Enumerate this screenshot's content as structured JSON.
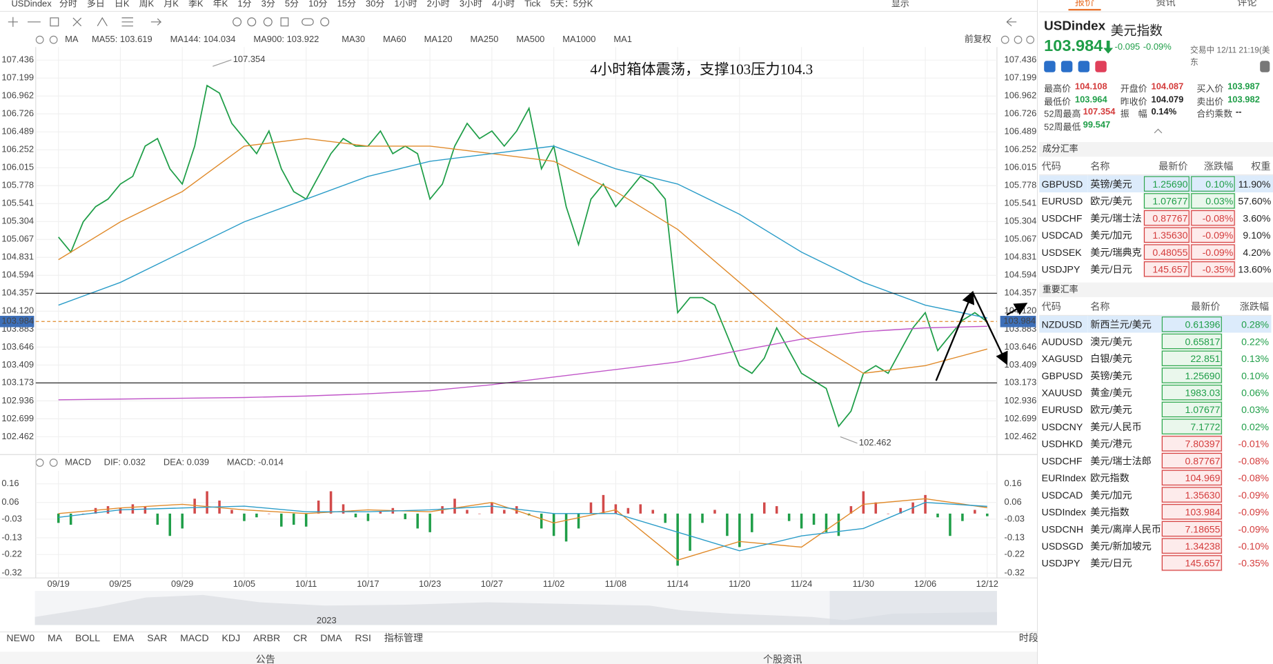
{
  "toolbar": {
    "symbol": "USDindex",
    "periods": [
      "分时",
      "多日",
      "日K",
      "周K",
      "月K",
      "季K",
      "年K",
      "1分",
      "3分",
      "5分",
      "10分",
      "15分",
      "30分",
      "1小时",
      "2小时",
      "3小时",
      "4小时",
      "Tick",
      "5天：5分K"
    ],
    "active": 16,
    "display": "显示"
  },
  "chart_data": [
    {
      "type": "line",
      "indicator": "MA",
      "adjust": "前复权",
      "annotation": "4小时箱体震荡，支撑103压力104.3",
      "ylim": [
        102.248,
        107.608
      ],
      "yticks": [
        107.436,
        107.199,
        106.962,
        106.726,
        106.489,
        106.252,
        106.015,
        105.778,
        105.541,
        105.304,
        105.067,
        104.831,
        104.594,
        104.357,
        {
          "value": 104.12,
          "label": "104.120"
        },
        103.883,
        103.646,
        103.409,
        103.173,
        102.936,
        102.699,
        102.462
      ],
      "grid": true,
      "high_label": 107.354,
      "low_label": 102.462,
      "last_price": 103.984,
      "hlines": [
        104.357,
        103.173
      ],
      "inactive_ma": [
        "MA30",
        "MA60",
        "MA120",
        "MA250",
        "MA500",
        "MA1000",
        "MA1"
      ],
      "series": [
        {
          "color": "#1f9e48",
          "values": [
            105.1,
            104.9,
            105.3,
            105.5,
            105.6,
            105.8,
            105.9,
            106.3,
            106.4,
            106.0,
            105.8,
            106.3,
            107.1,
            107.0,
            106.6,
            106.4,
            106.2,
            106.5,
            106.0,
            105.7,
            105.6,
            105.9,
            106.2,
            106.4,
            106.3,
            106.3,
            106.5,
            106.2,
            106.3,
            106.2,
            105.6,
            105.8,
            106.3,
            106.6,
            106.4,
            106.5,
            106.3,
            106.5,
            106.8,
            106.0,
            106.3,
            105.5,
            105.0,
            105.6,
            105.8,
            105.5,
            105.7,
            105.9,
            105.8,
            105.6,
            104.1,
            104.3,
            104.3,
            104.2,
            103.8,
            103.4,
            103.3,
            103.5,
            103.9,
            103.6,
            103.3,
            103.2,
            103.1,
            102.6,
            102.8,
            103.3,
            103.4,
            103.3,
            103.6,
            103.9,
            104.1,
            103.6,
            103.8,
            104.0,
            104.1,
            103.98
          ]
        },
        {
          "name": "MA55: 103.619",
          "color": "#e08a2a",
          "x": [
            0,
            5,
            10,
            15,
            20,
            25,
            30,
            35,
            40,
            45,
            50,
            55,
            60,
            65,
            70,
            75
          ],
          "values": [
            104.8,
            105.3,
            105.7,
            106.3,
            106.4,
            106.3,
            106.3,
            106.2,
            106.1,
            105.7,
            105.2,
            104.5,
            103.8,
            103.3,
            103.4,
            103.62
          ]
        },
        {
          "name": "MA144: 104.034",
          "color": "#2a9cc8",
          "x": [
            0,
            5,
            10,
            15,
            20,
            25,
            30,
            35,
            40,
            45,
            50,
            55,
            60,
            65,
            70,
            75
          ],
          "values": [
            104.2,
            104.5,
            104.9,
            105.3,
            105.6,
            105.9,
            106.1,
            106.2,
            106.3,
            106.0,
            105.8,
            105.4,
            104.9,
            104.5,
            104.2,
            104.03
          ]
        },
        {
          "name": "MA900: 103.922",
          "color": "#c055c8",
          "x": [
            0,
            5,
            10,
            15,
            20,
            25,
            30,
            35,
            40,
            45,
            50,
            55,
            60,
            65,
            70,
            75
          ],
          "values": [
            102.95,
            102.96,
            102.97,
            102.98,
            103.0,
            103.03,
            103.07,
            103.15,
            103.25,
            103.35,
            103.45,
            103.6,
            103.75,
            103.85,
            103.9,
            103.92
          ]
        }
      ]
    },
    {
      "type": "bar",
      "indicator": "MACD",
      "ylim": [
        -0.346,
        0.23
      ],
      "yticks": [
        0.16,
        0.06,
        -0.03,
        -0.13,
        -0.22,
        -0.32
      ],
      "grid": true,
      "categories": [
        "09/19",
        null,
        null,
        null,
        null,
        "09/25",
        null,
        null,
        null,
        null,
        "09/29",
        null,
        null,
        null,
        null,
        "10/05",
        null,
        null,
        null,
        null,
        "10/11",
        null,
        null,
        null,
        null,
        "10/17",
        null,
        null,
        null,
        null,
        "10/23",
        null,
        null,
        null,
        null,
        "10/27",
        null,
        null,
        null,
        null,
        "11/02",
        null,
        null,
        null,
        null,
        "11/08",
        null,
        null,
        null,
        null,
        "11/14",
        null,
        null,
        null,
        null,
        "11/20",
        null,
        null,
        null,
        null,
        "11/24",
        null,
        null,
        null,
        null,
        "11/30",
        null,
        null,
        null,
        null,
        "12/06",
        null,
        null,
        null,
        null,
        "12/12"
      ],
      "bars": {
        "name": "MACD: -0.014",
        "color": "#b04ec0",
        "up_color": "#d24a4a",
        "down_color": "#1f9e48",
        "values": [
          -0.05,
          -0.06,
          0.0,
          0.03,
          0.04,
          0.03,
          0.05,
          0.04,
          -0.06,
          -0.12,
          -0.08,
          0.08,
          0.12,
          0.07,
          0.02,
          -0.04,
          -0.02,
          0.0,
          -0.07,
          -0.06,
          -0.07,
          0.07,
          0.12,
          0.05,
          -0.02,
          -0.04,
          0.01,
          0.03,
          -0.03,
          -0.08,
          -0.1,
          0.04,
          0.08,
          0.02,
          0.0,
          0.06,
          0.02,
          0.04,
          -0.01,
          -0.08,
          -0.12,
          -0.15,
          -0.08,
          0.06,
          0.1,
          0.05,
          0.03,
          0.05,
          0.02,
          -0.05,
          -0.28,
          -0.2,
          -0.05,
          0.02,
          -0.12,
          -0.18,
          -0.1,
          0.06,
          0.04,
          -0.04,
          -0.08,
          -0.06,
          -0.1,
          -0.12,
          0.04,
          0.12,
          0.06,
          0.0,
          0.03,
          0.06,
          0.1,
          -0.02,
          -0.12,
          -0.04,
          0.02,
          -0.014
        ]
      },
      "series": [
        {
          "name": "DIF: 0.032",
          "color": "#e08a2a",
          "x": [
            0,
            5,
            10,
            15,
            20,
            25,
            30,
            35,
            40,
            45,
            50,
            55,
            60,
            65,
            70,
            75
          ],
          "values": [
            0.0,
            0.03,
            0.05,
            0.02,
            0.0,
            0.02,
            0.01,
            0.06,
            -0.05,
            0.02,
            -0.25,
            -0.15,
            -0.18,
            0.05,
            0.08,
            0.032
          ]
        },
        {
          "name": "DEA: 0.039",
          "color": "#2a9cc8",
          "x": [
            0,
            5,
            10,
            15,
            20,
            25,
            30,
            35,
            40,
            45,
            50,
            55,
            60,
            65,
            70,
            75
          ],
          "values": [
            -0.02,
            0.02,
            0.03,
            0.04,
            0.01,
            0.01,
            0.02,
            0.04,
            0.0,
            0.0,
            -0.1,
            -0.2,
            -0.12,
            -0.08,
            0.06,
            0.039
          ]
        }
      ]
    }
  ],
  "navigator": {
    "year": "2023"
  },
  "indicator_tabs": {
    "items": [
      "NEW0",
      "MA",
      "BOLL",
      "EMA",
      "SAR",
      "MACD",
      "KDJ",
      "ARBR",
      "CR",
      "DMA",
      "RSI",
      "指标管理"
    ],
    "active": [
      1,
      5,
      11
    ],
    "period": "时段"
  },
  "footer": {
    "left": "公告",
    "right": "个股资讯"
  },
  "quote": {
    "tabs": [
      "报价",
      "资讯",
      "评论"
    ],
    "active_tab": 0,
    "symbol": "USDindex",
    "name": "美元指数",
    "price": "103.984",
    "change": "-0.095",
    "change_pct": "-0.09%",
    "status": "交易中 12/11 21:19(美东",
    "stats": [
      {
        "label": "最高价",
        "value": "104.108",
        "color": "#d43c3c"
      },
      {
        "label": "开盘价",
        "value": "104.087",
        "color": "#d43c3c"
      },
      {
        "label": "买入价",
        "value": "103.987",
        "color": "#1f9e48"
      },
      {
        "label": "最低价",
        "value": "103.964",
        "color": "#1f9e48"
      },
      {
        "label": "昨收价",
        "value": "104.079",
        "color": "#222"
      },
      {
        "label": "卖出价",
        "value": "103.982",
        "color": "#1f9e48"
      },
      {
        "label": "52周最高",
        "value": "107.354",
        "color": "#d43c3c"
      },
      {
        "label": "振　幅",
        "value": "0.14%",
        "color": "#222"
      },
      {
        "label": "合约乘数",
        "value": "--",
        "color": "#222"
      },
      {
        "label": "52周最低",
        "value": "99.547",
        "color": "#1f9e48"
      }
    ]
  },
  "components": {
    "title": "成分汇率",
    "columns": [
      "代码",
      "名称",
      "最新价",
      "涨跌幅",
      "权重"
    ],
    "rows": [
      [
        "GBPUSD",
        "英镑/美元",
        "1.25690",
        "0.10%",
        "11.90%"
      ],
      [
        "EURUSD",
        "欧元/美元",
        "1.07677",
        "0.03%",
        "57.60%"
      ],
      [
        "USDCHF",
        "美元/瑞士法",
        "0.87767",
        "-0.08%",
        "3.60%"
      ],
      [
        "USDCAD",
        "美元/加元",
        "1.35630",
        "-0.09%",
        "9.10%"
      ],
      [
        "USDSEK",
        "美元/瑞典克",
        "0.48055",
        "-0.09%",
        "4.20%"
      ],
      [
        "USDJPY",
        "美元/日元",
        "145.657",
        "-0.35%",
        "13.60%"
      ]
    ]
  },
  "major": {
    "title": "重要汇率",
    "columns": [
      "代码",
      "名称",
      "最新价",
      "涨跌幅"
    ],
    "rows": [
      [
        "NZDUSD",
        "新西兰元/美元",
        "0.61396",
        "0.28%"
      ],
      [
        "AUDUSD",
        "澳元/美元",
        "0.65817",
        "0.22%"
      ],
      [
        "XAGUSD",
        "白银/美元",
        "22.851",
        "0.13%"
      ],
      [
        "GBPUSD",
        "英镑/美元",
        "1.25690",
        "0.10%"
      ],
      [
        "XAUUSD",
        "黄金/美元",
        "1983.03",
        "0.06%"
      ],
      [
        "EURUSD",
        "欧元/美元",
        "1.07677",
        "0.03%"
      ],
      [
        "USDCNY",
        "美元/人民币",
        "7.1772",
        "0.02%"
      ],
      [
        "USDHKD",
        "美元/港元",
        "7.80397",
        "-0.01%"
      ],
      [
        "USDCHF",
        "美元/瑞士法郎",
        "0.87767",
        "-0.08%"
      ],
      [
        "EURIndex",
        "欧元指数",
        "104.969",
        "-0.08%"
      ],
      [
        "USDCAD",
        "美元/加元",
        "1.35630",
        "-0.09%"
      ],
      [
        "USDIndex",
        "美元指数",
        "103.984",
        "-0.09%"
      ],
      [
        "USDCNH",
        "美元/离岸人民币",
        "7.18655",
        "-0.09%"
      ],
      [
        "USDSGD",
        "美元/新加坡元",
        "1.34238",
        "-0.10%"
      ],
      [
        "USDJPY",
        "美元/日元",
        "145.657",
        "-0.35%"
      ]
    ]
  }
}
